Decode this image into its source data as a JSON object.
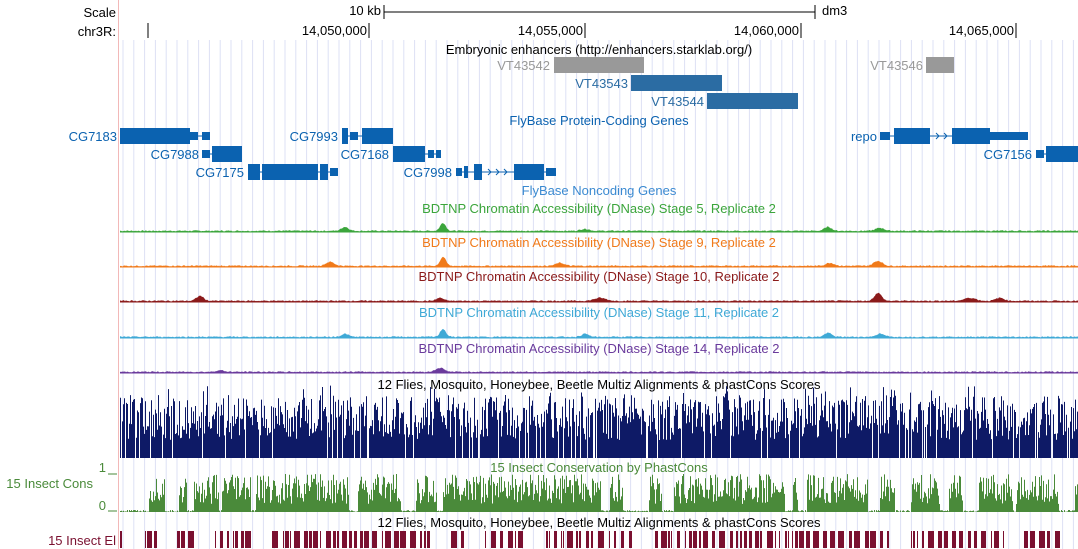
{
  "header": {
    "scale_label": "Scale",
    "scale_bar_text": "10 kb",
    "assembly": "dm3",
    "chrom_label": "chr3R:",
    "positions": [
      "14,050,000",
      "14,055,000",
      "14,060,000",
      "14,065,000"
    ]
  },
  "tracks": {
    "enhancers": {
      "title": "Embryonic enhancers (http://enhancers.starklab.org/)",
      "items": [
        {
          "label": "VT43542",
          "color": "#999999"
        },
        {
          "label": "VT43543",
          "color": "#2b6ca3"
        },
        {
          "label": "VT43544",
          "color": "#2b6ca3"
        },
        {
          "label": "VT43546",
          "color": "#999999"
        }
      ]
    },
    "genes": {
      "title": "FlyBase Protein-Coding Genes",
      "color": "#0b62b0",
      "labels": [
        "CG7183",
        "CG7988",
        "CG7175",
        "CG7993",
        "CG7168",
        "CG7998",
        "repo",
        "CG7156"
      ]
    },
    "noncoding": {
      "title": "FlyBase Noncoding Genes"
    },
    "dnase": [
      {
        "title": "BDTNP Chromatin Accessibility (DNase) Stage 5, Replicate 2",
        "color": "#3ba53b"
      },
      {
        "title": "BDTNP Chromatin Accessibility (DNase) Stage 9, Replicate 2",
        "color": "#f07a1a"
      },
      {
        "title": "BDTNP Chromatin Accessibility (DNase) Stage 10, Replicate 2",
        "color": "#8b1a1a"
      },
      {
        "title": "BDTNP Chromatin Accessibility (DNase) Stage 11, Replicate 2",
        "color": "#3fa9d6"
      },
      {
        "title": "BDTNP Chromatin Accessibility (DNase) Stage 14, Replicate 2",
        "color": "#6a3a9c"
      }
    ],
    "multiz": {
      "title": "12 Flies, Mosquito, Honeybee, Beetle Multiz Alignments & phastCons Scores",
      "color": "#0e1a66"
    },
    "cons": {
      "side_label": "15 Insect Cons",
      "title": "15 Insect Conservation by PhastCons",
      "ymax": "1",
      "ymin": "0",
      "color": "#4a8a3a"
    },
    "elements": {
      "side_label": "15 Insect El",
      "title": "12 Flies, Mosquito, Honeybee, Beetle Multiz Alignments & phastCons Scores",
      "color": "#7a1030"
    }
  }
}
